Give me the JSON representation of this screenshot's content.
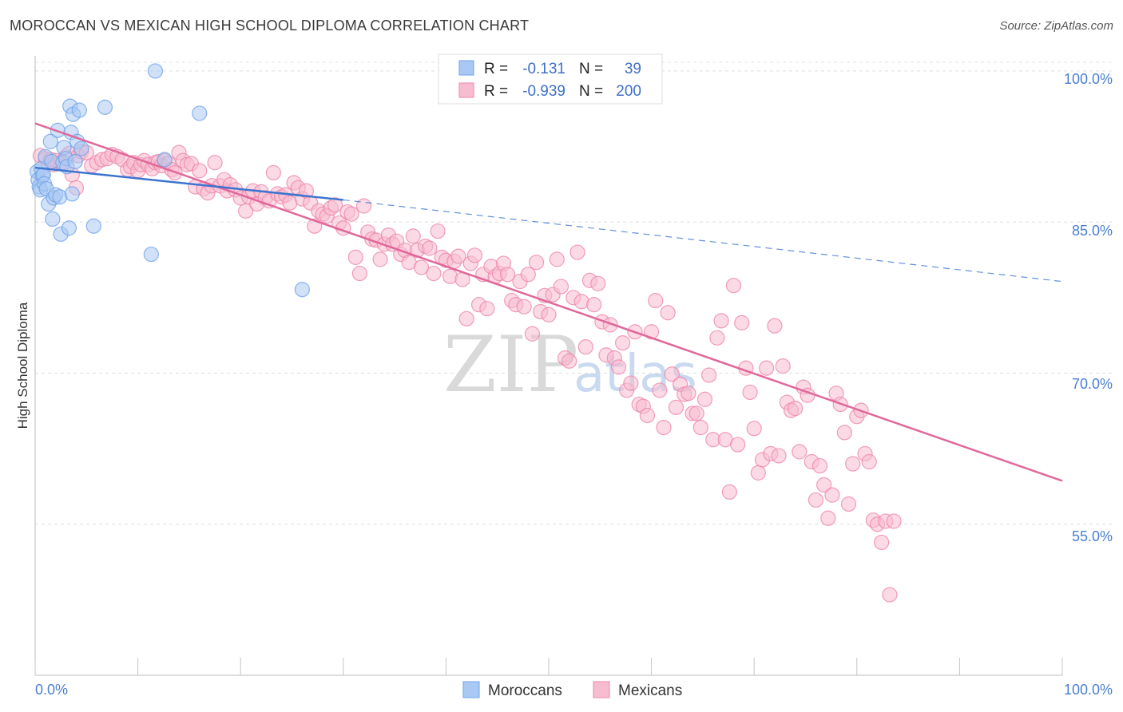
{
  "title": "MOROCCAN VS MEXICAN HIGH SCHOOL DIPLOMA CORRELATION CHART",
  "source": "Source: ZipAtlas.com",
  "watermark": {
    "zip": "ZIP",
    "atlas": "atlas"
  },
  "chart_data": {
    "type": "scatter",
    "title": "MOROCCAN VS MEXICAN HIGH SCHOOL DIPLOMA CORRELATION CHART",
    "xlabel": "",
    "ylabel": "High School Diploma",
    "xlim": [
      0,
      100
    ],
    "ylim": [
      40,
      101.5
    ],
    "x_tick_labels": {
      "left": "0.0%",
      "right": "100.0%"
    },
    "y_ticks": [
      {
        "value": 100,
        "label": "100.0%"
      },
      {
        "value": 85,
        "label": "85.0%"
      },
      {
        "value": 70,
        "label": "70.0%"
      },
      {
        "value": 55,
        "label": "55.0%"
      }
    ],
    "legend": {
      "rows": [
        {
          "r_label": "R =",
          "r_value": "-0.131",
          "n_label": "N =",
          "n_value": "39"
        },
        {
          "r_label": "R =",
          "r_value": "-0.939",
          "n_label": "N =",
          "n_value": "200"
        }
      ]
    },
    "series": [
      {
        "name": "Moroccans",
        "color": "#6fa3e8",
        "fill": "#a9c8f3",
        "line_color": "#3b74d0",
        "n": 39,
        "trend": {
          "x0": 0,
          "y0": 90.4,
          "x1": 30,
          "y1": 87.2,
          "dash_to_x": 100,
          "dash_to_y": 79.1
        },
        "points": [
          [
            0.2,
            90
          ],
          [
            0.3,
            89.2
          ],
          [
            0.4,
            88.5
          ],
          [
            0.5,
            88.2
          ],
          [
            0.6,
            90.3
          ],
          [
            0.7,
            89.6
          ],
          [
            0.8,
            89.7
          ],
          [
            0.9,
            88.8
          ],
          [
            1,
            91.5
          ],
          [
            1.1,
            88.3
          ],
          [
            1.3,
            86.8
          ],
          [
            1.5,
            93
          ],
          [
            1.6,
            91
          ],
          [
            1.7,
            85.3
          ],
          [
            1.8,
            87.4
          ],
          [
            2,
            87.7
          ],
          [
            2.2,
            94.1
          ],
          [
            2.4,
            87.5
          ],
          [
            2.5,
            83.8
          ],
          [
            2.7,
            90.9
          ],
          [
            2.8,
            92.4
          ],
          [
            3,
            91.3
          ],
          [
            3.1,
            90.5
          ],
          [
            3.3,
            84.4
          ],
          [
            3.4,
            96.5
          ],
          [
            3.5,
            93.9
          ],
          [
            3.6,
            87.8
          ],
          [
            3.7,
            95.7
          ],
          [
            3.9,
            91
          ],
          [
            4.1,
            93
          ],
          [
            4.3,
            96.1
          ],
          [
            4.5,
            92.3
          ],
          [
            5.7,
            84.6
          ],
          [
            6.8,
            96.4
          ],
          [
            11.3,
            81.8
          ],
          [
            11.7,
            100
          ],
          [
            12.6,
            91.2
          ],
          [
            16,
            95.8
          ],
          [
            26,
            78.3
          ]
        ]
      },
      {
        "name": "Mexicans",
        "color": "#ee86aa",
        "fill": "#f7bcd0",
        "line_color": "#e0689a",
        "n": 200,
        "trend": {
          "x0": 0,
          "y0": 94.8,
          "x1": 100,
          "y1": 59.3
        },
        "points": [
          [
            0.5,
            91.6
          ],
          [
            1,
            91.3
          ],
          [
            1.5,
            91.2
          ],
          [
            1.8,
            90.7
          ],
          [
            2,
            91.1
          ],
          [
            2.5,
            90.9
          ],
          [
            3,
            91.5
          ],
          [
            3.3,
            91.8
          ],
          [
            3.6,
            89.7
          ],
          [
            4,
            88.4
          ],
          [
            4.2,
            91.6
          ],
          [
            4.5,
            92
          ],
          [
            5,
            91.9
          ],
          [
            5.5,
            90.6
          ],
          [
            6,
            90.9
          ],
          [
            6.5,
            91.2
          ],
          [
            7,
            91.3
          ],
          [
            7.5,
            91.7
          ],
          [
            8,
            91.5
          ],
          [
            8.5,
            91.2
          ],
          [
            9,
            90.2
          ],
          [
            9.3,
            90.5
          ],
          [
            9.6,
            90.9
          ],
          [
            10,
            90.1
          ],
          [
            10.3,
            90.7
          ],
          [
            10.6,
            91.1
          ],
          [
            11,
            90.7
          ],
          [
            11.4,
            90.3
          ],
          [
            11.7,
            90.9
          ],
          [
            12,
            91
          ],
          [
            12.3,
            90.6
          ],
          [
            12.6,
            91.1
          ],
          [
            13,
            90.8
          ],
          [
            13.3,
            90.2
          ],
          [
            13.6,
            89.9
          ],
          [
            14,
            91.9
          ],
          [
            14.4,
            91.1
          ],
          [
            14.8,
            90.7
          ],
          [
            15.2,
            90.8
          ],
          [
            15.6,
            88.5
          ],
          [
            16,
            90.1
          ],
          [
            16.4,
            88.3
          ],
          [
            16.8,
            87.9
          ],
          [
            17.2,
            88.6
          ],
          [
            17.5,
            90.9
          ],
          [
            18,
            88.6
          ],
          [
            18.4,
            89.2
          ],
          [
            18.7,
            88.1
          ],
          [
            19,
            88.7
          ],
          [
            19.5,
            88.2
          ],
          [
            20,
            87.4
          ],
          [
            20.5,
            86.1
          ],
          [
            20.8,
            87.5
          ],
          [
            21.2,
            88.1
          ],
          [
            21.6,
            86.8
          ],
          [
            22,
            88
          ],
          [
            22.4,
            87.4
          ],
          [
            22.8,
            87.1
          ],
          [
            23.2,
            89.9
          ],
          [
            23.6,
            87.8
          ],
          [
            24,
            87.5
          ],
          [
            24.4,
            87.7
          ],
          [
            24.8,
            86.9
          ],
          [
            25.2,
            88.9
          ],
          [
            25.6,
            88.4
          ],
          [
            26,
            87.3
          ],
          [
            26.4,
            88.1
          ],
          [
            26.8,
            86.9
          ],
          [
            27.2,
            84.6
          ],
          [
            27.6,
            86.1
          ],
          [
            28,
            85.8
          ],
          [
            28.4,
            85.6
          ],
          [
            28.8,
            86.4
          ],
          [
            29.2,
            86.7
          ],
          [
            29.6,
            84.9
          ],
          [
            30,
            84.4
          ],
          [
            30.4,
            86
          ],
          [
            30.8,
            85.8
          ],
          [
            31.2,
            81.5
          ],
          [
            31.6,
            79.9
          ],
          [
            32,
            86.6
          ],
          [
            32.4,
            84
          ],
          [
            32.8,
            83.3
          ],
          [
            33.2,
            83.2
          ],
          [
            33.6,
            81.3
          ],
          [
            34,
            82.8
          ],
          [
            34.4,
            83.7
          ],
          [
            34.8,
            82.8
          ],
          [
            35.2,
            83.1
          ],
          [
            35.6,
            81.8
          ],
          [
            36,
            82.2
          ],
          [
            36.4,
            81
          ],
          [
            36.8,
            83.6
          ],
          [
            37.2,
            82.2
          ],
          [
            37.6,
            80.5
          ],
          [
            38,
            82.6
          ],
          [
            38.4,
            82.4
          ],
          [
            38.8,
            79.9
          ],
          [
            39.2,
            84.1
          ],
          [
            39.6,
            81.5
          ],
          [
            40,
            81.2
          ],
          [
            40.4,
            79.6
          ],
          [
            40.8,
            81.1
          ],
          [
            41.2,
            81.6
          ],
          [
            41.6,
            79.3
          ],
          [
            42,
            75.4
          ],
          [
            42.4,
            80.9
          ],
          [
            42.8,
            81.7
          ],
          [
            43.2,
            76.8
          ],
          [
            43.6,
            79.8
          ],
          [
            44,
            76.4
          ],
          [
            44.4,
            80.6
          ],
          [
            44.8,
            79.6
          ],
          [
            45.2,
            79.9
          ],
          [
            45.6,
            80.9
          ],
          [
            46,
            79.8
          ],
          [
            46.4,
            77.2
          ],
          [
            46.8,
            76.8
          ],
          [
            47.2,
            79.1
          ],
          [
            47.6,
            76.6
          ],
          [
            48,
            79.8
          ],
          [
            48.4,
            73.9
          ],
          [
            48.8,
            81
          ],
          [
            49.2,
            76.1
          ],
          [
            49.6,
            77.7
          ],
          [
            50,
            75.8
          ],
          [
            50.4,
            77.8
          ],
          [
            50.8,
            81.3
          ],
          [
            51.2,
            78.6
          ],
          [
            51.6,
            71.5
          ],
          [
            52,
            71.2
          ],
          [
            52.4,
            77.5
          ],
          [
            52.8,
            82
          ],
          [
            53.2,
            77.1
          ],
          [
            53.6,
            72.6
          ],
          [
            54,
            79.2
          ],
          [
            54.4,
            76.8
          ],
          [
            54.8,
            78.9
          ],
          [
            55.2,
            75.1
          ],
          [
            55.6,
            71.8
          ],
          [
            56,
            74.8
          ],
          [
            56.4,
            71.5
          ],
          [
            56.8,
            70.6
          ],
          [
            57.2,
            73
          ],
          [
            57.6,
            68.3
          ],
          [
            58,
            69
          ],
          [
            58.4,
            74.1
          ],
          [
            58.8,
            66.9
          ],
          [
            59.2,
            66.7
          ],
          [
            59.6,
            65.8
          ],
          [
            60,
            74.1
          ],
          [
            60.4,
            77.2
          ],
          [
            60.8,
            68.3
          ],
          [
            61.2,
            64.6
          ],
          [
            61.6,
            76
          ],
          [
            62,
            69.9
          ],
          [
            62.4,
            66.6
          ],
          [
            62.8,
            68.9
          ],
          [
            63.2,
            67.9
          ],
          [
            63.6,
            68
          ],
          [
            64,
            66
          ],
          [
            64.4,
            66
          ],
          [
            64.8,
            64.6
          ],
          [
            65.2,
            67.4
          ],
          [
            65.6,
            69.8
          ],
          [
            66,
            63.4
          ],
          [
            66.4,
            73.5
          ],
          [
            66.8,
            75.2
          ],
          [
            67.2,
            63.4
          ],
          [
            67.6,
            58.2
          ],
          [
            68,
            78.7
          ],
          [
            68.4,
            62.9
          ],
          [
            68.8,
            75
          ],
          [
            69.2,
            70.5
          ],
          [
            69.6,
            68.1
          ],
          [
            70,
            64.5
          ],
          [
            70.4,
            60.1
          ],
          [
            70.8,
            61.4
          ],
          [
            71.2,
            70.5
          ],
          [
            71.6,
            62
          ],
          [
            72,
            74.7
          ],
          [
            72.4,
            61.8
          ],
          [
            72.8,
            70.7
          ],
          [
            73.2,
            67.1
          ],
          [
            73.6,
            66.3
          ],
          [
            74,
            66.5
          ],
          [
            74.4,
            62.2
          ],
          [
            74.8,
            68.6
          ],
          [
            75.2,
            67.8
          ],
          [
            75.6,
            61.2
          ],
          [
            76,
            57.4
          ],
          [
            76.4,
            60.8
          ],
          [
            76.8,
            58.9
          ],
          [
            77.2,
            55.6
          ],
          [
            77.6,
            57.9
          ],
          [
            78,
            68
          ],
          [
            78.4,
            66.9
          ],
          [
            78.8,
            64.1
          ],
          [
            79.2,
            57
          ],
          [
            79.6,
            61
          ],
          [
            80,
            65.7
          ],
          [
            80.4,
            66.3
          ],
          [
            80.8,
            62
          ],
          [
            81.2,
            61.2
          ],
          [
            81.6,
            55.4
          ],
          [
            82,
            55
          ],
          [
            82.4,
            53.2
          ],
          [
            82.8,
            55.3
          ],
          [
            83.2,
            48
          ],
          [
            83.6,
            55.3
          ]
        ]
      }
    ]
  }
}
